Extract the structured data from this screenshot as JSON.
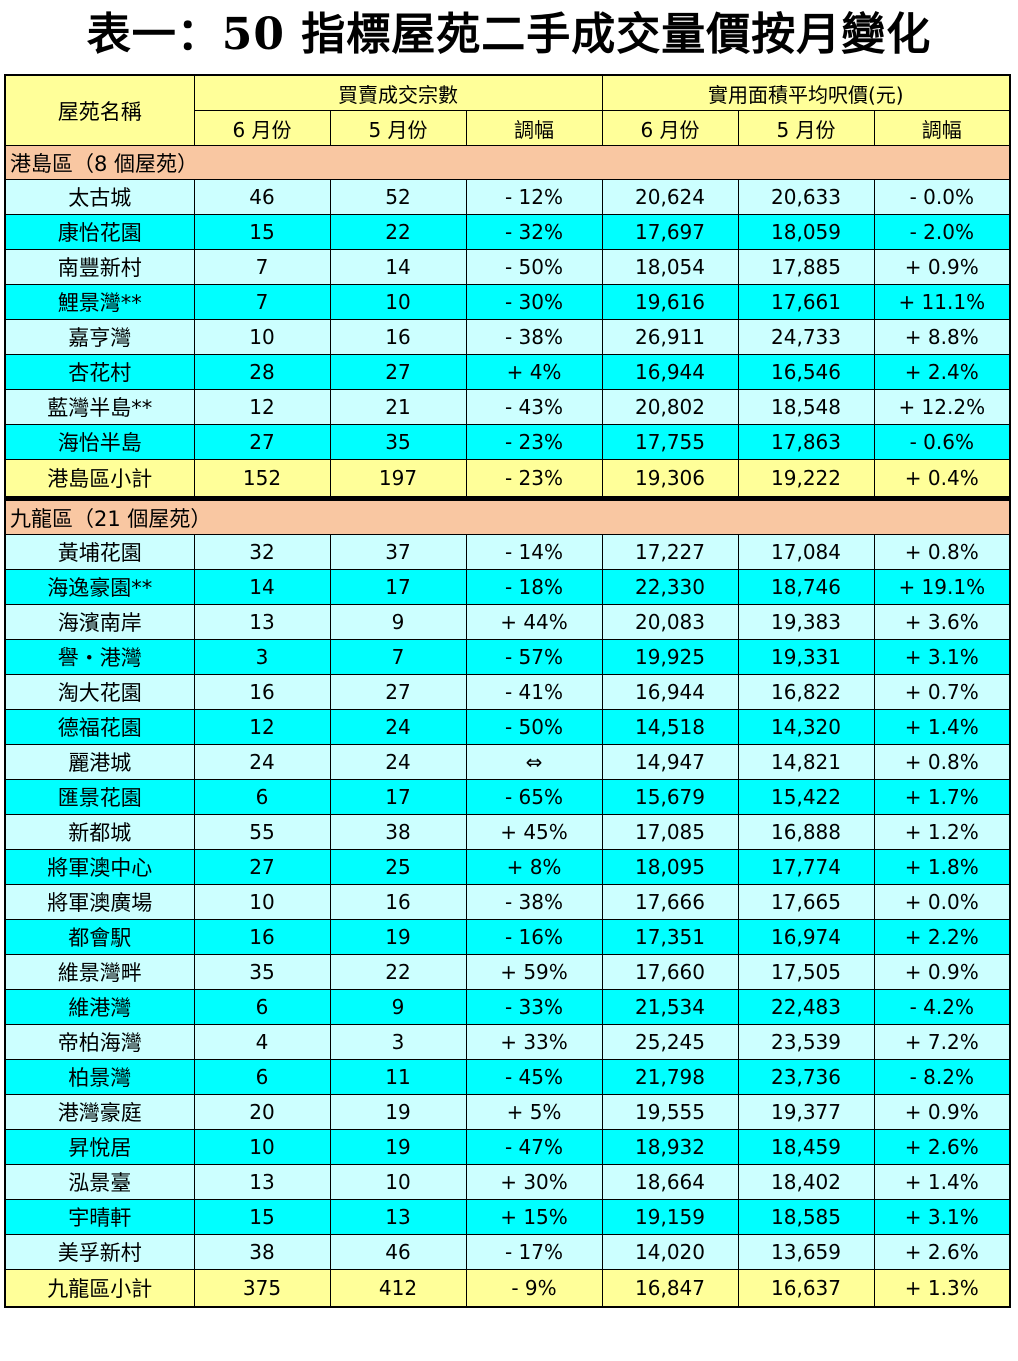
{
  "title": "表一：50 指標屋苑二手成交量價按月變化",
  "header": {
    "estate_name": "屋苑名稱",
    "group_volume": "買賣成交宗數",
    "group_price": "實用面積平均呎價(元)",
    "jun": "6 月份",
    "may": "5 月份",
    "change": "調幅"
  },
  "sections": [
    {
      "label": "港島區（8 個屋苑）",
      "rows": [
        {
          "name": "太古城",
          "vol_jun": "46",
          "vol_may": "52",
          "vol_chg": "- 12%",
          "px_jun": "20,624",
          "px_may": "20,633",
          "px_chg": "- 0.0%"
        },
        {
          "name": "康怡花園",
          "vol_jun": "15",
          "vol_may": "22",
          "vol_chg": "- 32%",
          "px_jun": "17,697",
          "px_may": "18,059",
          "px_chg": "- 2.0%"
        },
        {
          "name": "南豐新村",
          "vol_jun": "7",
          "vol_may": "14",
          "vol_chg": "- 50%",
          "px_jun": "18,054",
          "px_may": "17,885",
          "px_chg": "+ 0.9%"
        },
        {
          "name": "鯉景灣**",
          "vol_jun": "7",
          "vol_may": "10",
          "vol_chg": "- 30%",
          "px_jun": "19,616",
          "px_may": "17,661",
          "px_chg": "+ 11.1%"
        },
        {
          "name": "嘉亨灣",
          "vol_jun": "10",
          "vol_may": "16",
          "vol_chg": "- 38%",
          "px_jun": "26,911",
          "px_may": "24,733",
          "px_chg": "+ 8.8%"
        },
        {
          "name": "杏花村",
          "vol_jun": "28",
          "vol_may": "27",
          "vol_chg": "+ 4%",
          "px_jun": "16,944",
          "px_may": "16,546",
          "px_chg": "+ 2.4%"
        },
        {
          "name": "藍灣半島**",
          "vol_jun": "12",
          "vol_may": "21",
          "vol_chg": "- 43%",
          "px_jun": "20,802",
          "px_may": "18,548",
          "px_chg": "+ 12.2%"
        },
        {
          "name": "海怡半島",
          "vol_jun": "27",
          "vol_may": "35",
          "vol_chg": "- 23%",
          "px_jun": "17,755",
          "px_may": "17,863",
          "px_chg": "- 0.6%"
        }
      ],
      "subtotal": {
        "name": "港島區小計",
        "vol_jun": "152",
        "vol_may": "197",
        "vol_chg": "- 23%",
        "px_jun": "19,306",
        "px_may": "19,222",
        "px_chg": "+ 0.4%"
      }
    },
    {
      "label": "九龍區（21 個屋苑）",
      "rows": [
        {
          "name": "黃埔花園",
          "vol_jun": "32",
          "vol_may": "37",
          "vol_chg": "- 14%",
          "px_jun": "17,227",
          "px_may": "17,084",
          "px_chg": "+ 0.8%"
        },
        {
          "name": "海逸豪園**",
          "vol_jun": "14",
          "vol_may": "17",
          "vol_chg": "- 18%",
          "px_jun": "22,330",
          "px_may": "18,746",
          "px_chg": "+ 19.1%"
        },
        {
          "name": "海濱南岸",
          "vol_jun": "13",
          "vol_may": "9",
          "vol_chg": "+ 44%",
          "px_jun": "20,083",
          "px_may": "19,383",
          "px_chg": "+ 3.6%"
        },
        {
          "name": "譽・港灣",
          "vol_jun": "3",
          "vol_may": "7",
          "vol_chg": "- 57%",
          "px_jun": "19,925",
          "px_may": "19,331",
          "px_chg": "+ 3.1%"
        },
        {
          "name": "淘大花園",
          "vol_jun": "16",
          "vol_may": "27",
          "vol_chg": "- 41%",
          "px_jun": "16,944",
          "px_may": "16,822",
          "px_chg": "+ 0.7%"
        },
        {
          "name": "德福花園",
          "vol_jun": "12",
          "vol_may": "24",
          "vol_chg": "- 50%",
          "px_jun": "14,518",
          "px_may": "14,320",
          "px_chg": "+ 1.4%"
        },
        {
          "name": "麗港城",
          "vol_jun": "24",
          "vol_may": "24",
          "vol_chg": "⇔",
          "px_jun": "14,947",
          "px_may": "14,821",
          "px_chg": "+ 0.8%"
        },
        {
          "name": "匯景花園",
          "vol_jun": "6",
          "vol_may": "17",
          "vol_chg": "- 65%",
          "px_jun": "15,679",
          "px_may": "15,422",
          "px_chg": "+ 1.7%"
        },
        {
          "name": "新都城",
          "vol_jun": "55",
          "vol_may": "38",
          "vol_chg": "+ 45%",
          "px_jun": "17,085",
          "px_may": "16,888",
          "px_chg": "+ 1.2%"
        },
        {
          "name": "將軍澳中心",
          "vol_jun": "27",
          "vol_may": "25",
          "vol_chg": "+ 8%",
          "px_jun": "18,095",
          "px_may": "17,774",
          "px_chg": "+ 1.8%"
        },
        {
          "name": "將軍澳廣場",
          "vol_jun": "10",
          "vol_may": "16",
          "vol_chg": "- 38%",
          "px_jun": "17,666",
          "px_may": "17,665",
          "px_chg": "+ 0.0%"
        },
        {
          "name": "都會駅",
          "vol_jun": "16",
          "vol_may": "19",
          "vol_chg": "- 16%",
          "px_jun": "17,351",
          "px_may": "16,974",
          "px_chg": "+ 2.2%"
        },
        {
          "name": "維景灣畔",
          "vol_jun": "35",
          "vol_may": "22",
          "vol_chg": "+ 59%",
          "px_jun": "17,660",
          "px_may": "17,505",
          "px_chg": "+ 0.9%"
        },
        {
          "name": "維港灣",
          "vol_jun": "6",
          "vol_may": "9",
          "vol_chg": "- 33%",
          "px_jun": "21,534",
          "px_may": "22,483",
          "px_chg": "- 4.2%"
        },
        {
          "name": "帝柏海灣",
          "vol_jun": "4",
          "vol_may": "3",
          "vol_chg": "+ 33%",
          "px_jun": "25,245",
          "px_may": "23,539",
          "px_chg": "+ 7.2%"
        },
        {
          "name": "柏景灣",
          "vol_jun": "6",
          "vol_may": "11",
          "vol_chg": "- 45%",
          "px_jun": "21,798",
          "px_may": "23,736",
          "px_chg": "- 8.2%"
        },
        {
          "name": "港灣豪庭",
          "vol_jun": "20",
          "vol_may": "19",
          "vol_chg": "+ 5%",
          "px_jun": "19,555",
          "px_may": "19,377",
          "px_chg": "+ 0.9%"
        },
        {
          "name": "昇悅居",
          "vol_jun": "10",
          "vol_may": "19",
          "vol_chg": "- 47%",
          "px_jun": "18,932",
          "px_may": "18,459",
          "px_chg": "+ 2.6%"
        },
        {
          "name": "泓景臺",
          "vol_jun": "13",
          "vol_may": "10",
          "vol_chg": "+ 30%",
          "px_jun": "18,664",
          "px_may": "18,402",
          "px_chg": "+ 1.4%"
        },
        {
          "name": "宇晴軒",
          "vol_jun": "15",
          "vol_may": "13",
          "vol_chg": "+ 15%",
          "px_jun": "19,159",
          "px_may": "18,585",
          "px_chg": "+ 3.1%"
        },
        {
          "name": "美孚新村",
          "vol_jun": "38",
          "vol_may": "46",
          "vol_chg": "- 17%",
          "px_jun": "14,020",
          "px_may": "13,659",
          "px_chg": "+ 2.6%"
        }
      ],
      "subtotal": {
        "name": "九龍區小計",
        "vol_jun": "375",
        "vol_may": "412",
        "vol_chg": "- 9%",
        "px_jun": "16,847",
        "px_may": "16,637",
        "px_chg": "+ 1.3%"
      }
    }
  ]
}
